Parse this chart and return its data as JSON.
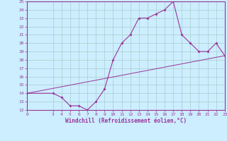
{
  "xlabel": "Windchill (Refroidissement éolien,°C)",
  "ylabel": "",
  "bg_color": "#cceeff",
  "line_color": "#993399",
  "grid_color": "#aacccc",
  "x_data": [
    0,
    3,
    4,
    5,
    6,
    7,
    8,
    9,
    10,
    11,
    12,
    13,
    14,
    15,
    16,
    17,
    18,
    19,
    20,
    21,
    22,
    23
  ],
  "y_data": [
    14,
    14,
    13.5,
    12.5,
    12.5,
    12,
    13,
    14.5,
    18,
    20,
    21,
    23,
    23,
    23.5,
    24,
    25,
    21,
    20,
    19,
    19,
    20,
    18.5
  ],
  "trend_x": [
    0,
    23
  ],
  "trend_y": [
    14,
    18.5
  ],
  "ylim": [
    12,
    25
  ],
  "xlim": [
    0,
    23
  ],
  "yticks": [
    12,
    13,
    14,
    15,
    16,
    17,
    18,
    19,
    20,
    21,
    22,
    23,
    24,
    25
  ],
  "xticks": [
    0,
    3,
    4,
    5,
    6,
    7,
    8,
    9,
    10,
    11,
    12,
    13,
    14,
    15,
    16,
    17,
    18,
    19,
    20,
    21,
    22,
    23
  ],
  "tick_fontsize": 4.5,
  "xlabel_fontsize": 5.5
}
